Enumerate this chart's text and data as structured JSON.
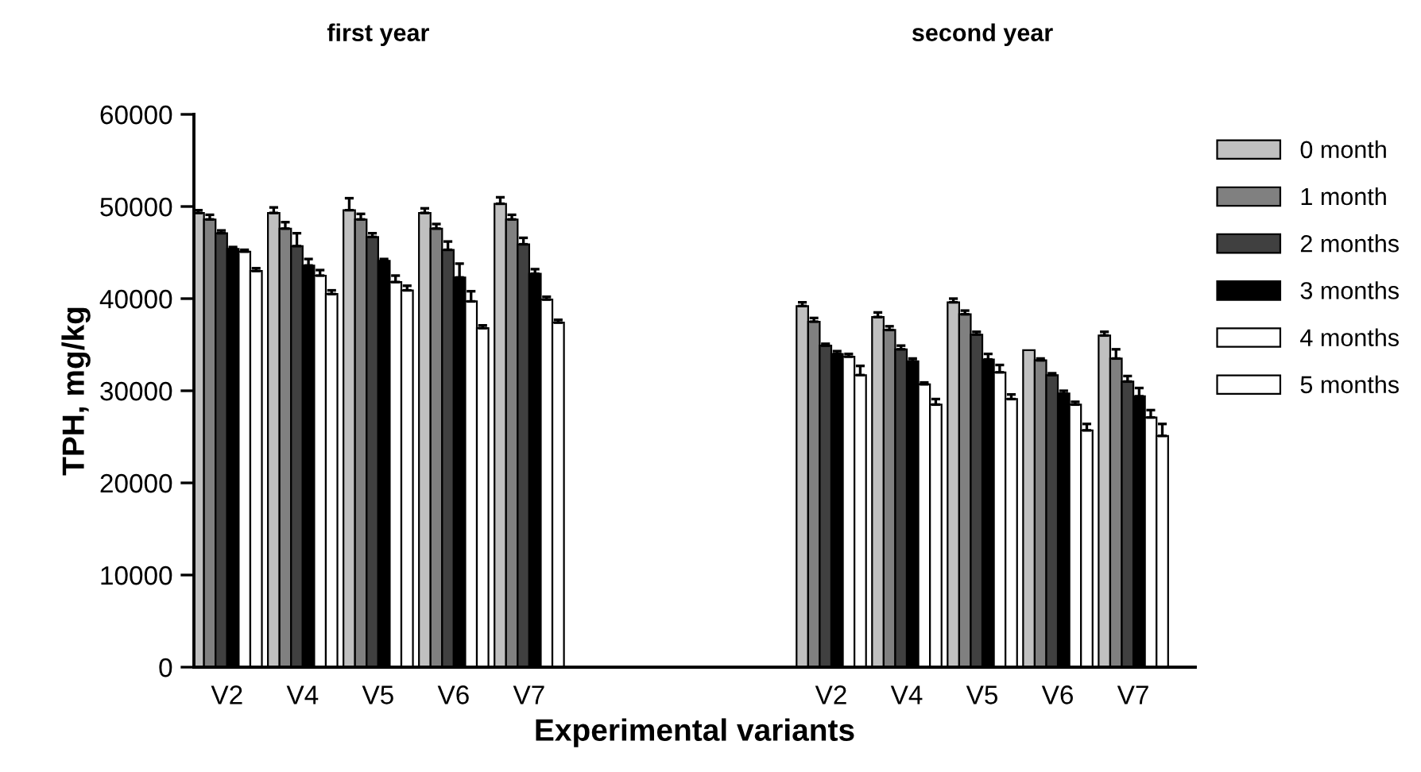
{
  "chart_data": {
    "type": "bar",
    "xlabel": "Experimental variants",
    "ylabel": "TPH, mg/kg",
    "annotations": [
      "first year",
      "second year"
    ],
    "categories": [
      "V2",
      "V4",
      "V5",
      "V6",
      "V7",
      null,
      null,
      null,
      "V2",
      "V4",
      "V5",
      "V6",
      "V7"
    ],
    "series": [
      {
        "name": "0 month",
        "color": "#c0c0c0",
        "values": [
          49300,
          49300,
          49600,
          49300,
          50300,
          null,
          null,
          null,
          39200,
          38000,
          39600,
          34400,
          36000
        ],
        "errors": [
          300,
          600,
          1300,
          500,
          700,
          null,
          null,
          null,
          400,
          500,
          400,
          null,
          400
        ]
      },
      {
        "name": "1 month",
        "color": "#808080",
        "values": [
          48600,
          47600,
          48600,
          47600,
          48600,
          null,
          null,
          null,
          37500,
          36600,
          38300,
          33300,
          33500
        ],
        "errors": [
          500,
          700,
          600,
          500,
          500,
          null,
          null,
          null,
          400,
          400,
          400,
          200,
          1000
        ]
      },
      {
        "name": "2 months",
        "color": "#404040",
        "values": [
          47100,
          45700,
          46700,
          45300,
          45900,
          null,
          null,
          null,
          34900,
          34500,
          36100,
          31700,
          31000
        ],
        "errors": [
          300,
          1400,
          400,
          900,
          700,
          null,
          null,
          null,
          200,
          400,
          300,
          200,
          600
        ]
      },
      {
        "name": "3 months",
        "color": "#000000",
        "values": [
          45400,
          43600,
          44100,
          42300,
          42700,
          null,
          null,
          null,
          34000,
          33200,
          33400,
          29700,
          29400
        ],
        "errors": [
          200,
          700,
          200,
          1500,
          500,
          null,
          null,
          null,
          300,
          300,
          600,
          300,
          900
        ]
      },
      {
        "name": "4 months",
        "color": "#ffffff",
        "values": [
          45100,
          42500,
          41800,
          39700,
          39900,
          null,
          null,
          null,
          33700,
          30700,
          32000,
          28500,
          27100
        ],
        "errors": [
          200,
          600,
          700,
          1100,
          300,
          null,
          null,
          null,
          300,
          200,
          800,
          300,
          800
        ]
      },
      {
        "name": "5 months",
        "color": "#ffffff",
        "values": [
          43000,
          40500,
          40900,
          36800,
          37400,
          null,
          null,
          null,
          31700,
          28500,
          29100,
          25700,
          25100
        ],
        "errors": [
          300,
          400,
          500,
          300,
          300,
          null,
          null,
          null,
          1000,
          600,
          500,
          700,
          1300
        ]
      }
    ],
    "ylim": [
      0,
      60000
    ],
    "yticks": [
      0,
      10000,
      20000,
      30000,
      40000,
      50000,
      60000
    ],
    "grid": false,
    "legend": "right"
  }
}
